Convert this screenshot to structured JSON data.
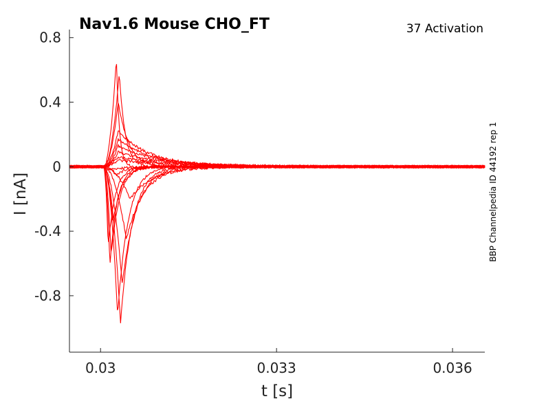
{
  "chart_data": {
    "type": "line",
    "title": "Nav1.6  Mouse  CHO_FT",
    "corner_label": "37  Activation",
    "side_label": "BBP Channelpedia ID 44192 rep 1",
    "xlabel": "t [s]",
    "ylabel": "I [nA]",
    "xlim": [
      0.02947,
      0.03655
    ],
    "ylim": [
      -1.15,
      0.85
    ],
    "xticks": [
      0.03,
      0.033,
      0.036
    ],
    "xtick_labels": [
      "0.03",
      "0.033",
      "0.036"
    ],
    "yticks": [
      0.8,
      0.4,
      0,
      -0.4,
      -0.8
    ],
    "ytick_labels": [
      "0.8",
      "0.4",
      "0",
      "-0.4",
      "-0.8"
    ],
    "grid": false,
    "line_color": "#ff0000",
    "pulse_start": 0.03005,
    "series": [
      {
        "peak_time": 0.0301,
        "peak": -0.02,
        "tau_decay": 0.0003
      },
      {
        "peak_time": 0.03013,
        "peak": -0.5,
        "tau_decay": 0.00012
      },
      {
        "peak_time": 0.03016,
        "peak": -0.62,
        "tau_decay": 0.00012
      },
      {
        "peak_time": 0.03018,
        "peak": -0.55,
        "tau_decay": 0.00014
      },
      {
        "peak_time": 0.03021,
        "peak": -0.35,
        "tau_decay": 0.00015
      },
      {
        "peak_time": 0.03026,
        "peak": -0.05,
        "tau_decay": 0.0002
      },
      {
        "peak_time": 0.03029,
        "peak": -0.92,
        "tau_decay": 0.00018
      },
      {
        "peak_time": 0.03034,
        "peak": -0.97,
        "tau_decay": 0.0002
      },
      {
        "peak_time": 0.03037,
        "peak": -0.73,
        "tau_decay": 0.00024
      },
      {
        "peak_time": 0.03044,
        "peak": -0.45,
        "tau_decay": 0.0003
      },
      {
        "peak_time": 0.0305,
        "peak": -0.2,
        "tau_decay": 0.0004
      },
      {
        "peak_time": 0.03027,
        "peak": 0.68,
        "tau_decay": 5e-05
      },
      {
        "peak_time": 0.03032,
        "peak": 0.58,
        "tau_decay": 0.0001
      },
      {
        "peak_time": 0.0303,
        "peak": 0.4,
        "tau_decay": 0.00018
      },
      {
        "peak_time": 0.0303,
        "peak": 0.22,
        "tau_decay": 0.00055
      },
      {
        "peak_time": 0.0303,
        "peak": 0.17,
        "tau_decay": 0.0006
      },
      {
        "peak_time": 0.0303,
        "peak": 0.13,
        "tau_decay": 0.0007
      },
      {
        "peak_time": 0.0303,
        "peak": 0.09,
        "tau_decay": 0.0008
      },
      {
        "peak_time": 0.0303,
        "peak": 0.06,
        "tau_decay": 0.0009
      },
      {
        "peak_time": 0.03031,
        "peak": 0.04,
        "tau_decay": 0.001
      }
    ]
  }
}
